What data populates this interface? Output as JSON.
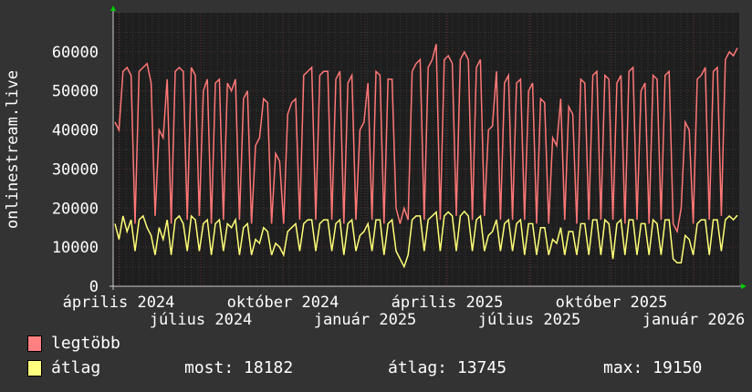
{
  "chart_data": {
    "type": "line",
    "ylabel": "onlinestream.live",
    "ylim": [
      0,
      70000
    ],
    "yticks": [
      0,
      10000,
      20000,
      30000,
      40000,
      50000,
      60000
    ],
    "xtick_labels": [
      "április 2024",
      "július 2024",
      "október 2024",
      "január 2025",
      "április 2025",
      "július 2025",
      "október 2025",
      "január 2026"
    ],
    "grid": true,
    "legend_placement": "bottom-left",
    "series": [
      {
        "name": "legtöbb",
        "color": "#ff7777",
        "values": [
          42000,
          40000,
          55000,
          56000,
          54000,
          16000,
          55000,
          56000,
          57000,
          52000,
          18000,
          40000,
          38000,
          53000,
          16000,
          55000,
          56000,
          55000,
          17000,
          56000,
          54000,
          18000,
          50000,
          53000,
          16000,
          52000,
          53000,
          17000,
          52000,
          50000,
          53000,
          17000,
          48000,
          50000,
          16000,
          36000,
          38000,
          48000,
          47000,
          16000,
          34000,
          32000,
          16000,
          44000,
          47000,
          48000,
          17000,
          54000,
          55000,
          56000,
          17000,
          54000,
          55000,
          55000,
          17000,
          53000,
          55000,
          16000,
          52000,
          54000,
          17000,
          40000,
          42000,
          52000,
          17000,
          55000,
          54000,
          16000,
          53000,
          53000,
          20000,
          16000,
          20000,
          17000,
          55000,
          57000,
          58000,
          17000,
          56000,
          58000,
          62000,
          17000,
          58000,
          59000,
          57000,
          18000,
          58000,
          60000,
          58000,
          17000,
          56000,
          58000,
          18000,
          40000,
          41000,
          55000,
          17000,
          52000,
          54000,
          17000,
          52000,
          53000,
          17000,
          50000,
          52000,
          16000,
          48000,
          47000,
          16000,
          38000,
          36000,
          48000,
          17000,
          46000,
          44000,
          16000,
          53000,
          52000,
          17000,
          54000,
          55000,
          17000,
          54000,
          53000,
          17000,
          52000,
          54000,
          16000,
          55000,
          56000,
          17000,
          50000,
          52000,
          16000,
          54000,
          53000,
          17000,
          54000,
          55000,
          16000,
          14000,
          20000,
          42000,
          40000,
          16000,
          53000,
          54000,
          56000,
          17000,
          55000,
          56000,
          18000,
          58000,
          60000,
          59000,
          61000
        ]
      },
      {
        "name": "átlag",
        "color": "#ffff77",
        "values": [
          16000,
          12000,
          18000,
          14000,
          17000,
          9000,
          17000,
          18000,
          15000,
          13000,
          8000,
          15000,
          12000,
          17000,
          8000,
          17000,
          18000,
          16000,
          9000,
          18000,
          17000,
          9000,
          16000,
          17000,
          8000,
          16000,
          17000,
          9000,
          16000,
          15000,
          17000,
          8000,
          15000,
          16000,
          8000,
          12000,
          11000,
          15000,
          14000,
          8000,
          11000,
          10000,
          8000,
          14000,
          15000,
          16000,
          9000,
          16000,
          17000,
          17000,
          9000,
          16000,
          17000,
          17000,
          9000,
          16000,
          17000,
          8000,
          16000,
          17000,
          9000,
          13000,
          14000,
          16000,
          9000,
          17000,
          17000,
          8000,
          16000,
          17000,
          9000,
          7000,
          5000,
          8000,
          17000,
          18000,
          18000,
          9000,
          17000,
          18000,
          19000,
          9000,
          18000,
          19000,
          18000,
          9000,
          18000,
          19150,
          18000,
          9000,
          17000,
          18000,
          9000,
          13000,
          14000,
          17000,
          9000,
          16000,
          17000,
          9000,
          16000,
          17000,
          8000,
          16000,
          16000,
          8000,
          15000,
          15000,
          8000,
          12000,
          11000,
          15000,
          8000,
          14000,
          14000,
          8000,
          16000,
          16000,
          8000,
          17000,
          17000,
          8000,
          17000,
          16000,
          7000,
          16000,
          17000,
          8000,
          17000,
          17000,
          8000,
          16000,
          16000,
          8000,
          17000,
          16000,
          8000,
          17000,
          17000,
          7000,
          6000,
          6000,
          13000,
          12000,
          8000,
          16000,
          17000,
          17000,
          8000,
          17000,
          17000,
          9000,
          17000,
          18000,
          17000,
          18182
        ]
      }
    ],
    "legend": [
      {
        "label": "legtöbb",
        "swatch": "#ff8080"
      },
      {
        "label": "átlag",
        "swatch": "#ffff80",
        "stats": {
          "most": "most: 18182",
          "atlag": "átlag: 13745",
          "max": "max: 19150"
        }
      }
    ]
  }
}
